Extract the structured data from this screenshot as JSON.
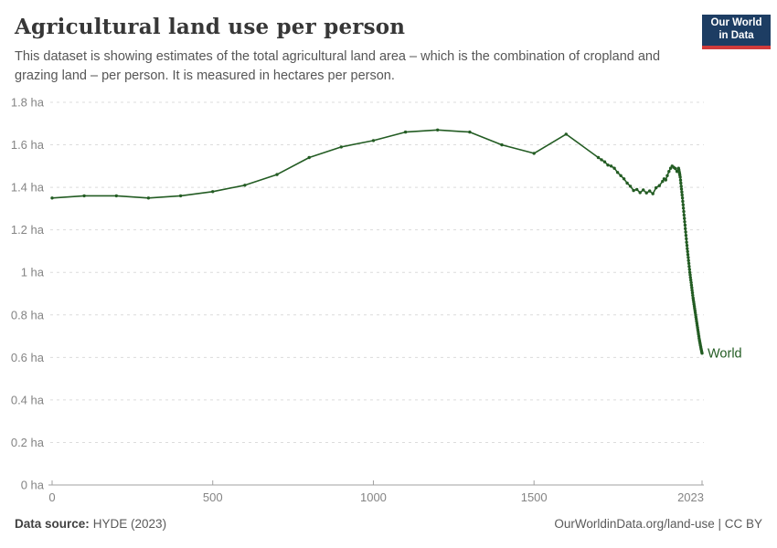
{
  "header": {
    "title": "Agricultural land use per person",
    "subtitle_lines": [
      "This dataset is showing estimates of the total agricultural land area – which is the combination of cropland and",
      "grazing land – per person. It is measured in hectares per person."
    ],
    "logo": {
      "line1": "Our World",
      "line2": "in Data",
      "bg_color": "#1d3d63",
      "stripe_color": "#d13b3b"
    }
  },
  "chart_data": {
    "type": "line",
    "title": "Agricultural land use per person",
    "unit": "hectares per person",
    "grid": "horizontal dashed",
    "legend_position": "end-of-line label",
    "x_min": 0,
    "x_max": 2023,
    "y_min": 0,
    "y_max": 1.8,
    "x_ticks": [
      {
        "v": 0,
        "label": "0"
      },
      {
        "v": 500,
        "label": "500"
      },
      {
        "v": 1000,
        "label": "1000"
      },
      {
        "v": 1500,
        "label": "1500"
      },
      {
        "v": 2023,
        "label": "2023"
      }
    ],
    "y_ticks": [
      {
        "v": 0,
        "label": "0 ha"
      },
      {
        "v": 0.2,
        "label": "0.2 ha"
      },
      {
        "v": 0.4,
        "label": "0.4 ha"
      },
      {
        "v": 0.6,
        "label": "0.6 ha"
      },
      {
        "v": 0.8,
        "label": "0.8 ha"
      },
      {
        "v": 1,
        "label": "1 ha"
      },
      {
        "v": 1.2,
        "label": "1.2 ha"
      },
      {
        "v": 1.4,
        "label": "1.4 ha"
      },
      {
        "v": 1.6,
        "label": "1.6 ha"
      },
      {
        "v": 1.8,
        "label": "1.8 ha"
      }
    ],
    "series": [
      {
        "name": "World",
        "color": "#235c23",
        "points": [
          [
            0,
            1.35
          ],
          [
            100,
            1.36
          ],
          [
            200,
            1.36
          ],
          [
            300,
            1.35
          ],
          [
            400,
            1.36
          ],
          [
            500,
            1.38
          ],
          [
            600,
            1.41
          ],
          [
            700,
            1.46
          ],
          [
            800,
            1.54
          ],
          [
            900,
            1.59
          ],
          [
            1000,
            1.62
          ],
          [
            1100,
            1.66
          ],
          [
            1200,
            1.67
          ],
          [
            1300,
            1.66
          ],
          [
            1400,
            1.6
          ],
          [
            1500,
            1.56
          ],
          [
            1600,
            1.65
          ],
          [
            1700,
            1.54
          ],
          [
            1710,
            1.53
          ],
          [
            1720,
            1.52
          ],
          [
            1730,
            1.505
          ],
          [
            1740,
            1.5
          ],
          [
            1750,
            1.49
          ],
          [
            1760,
            1.47
          ],
          [
            1770,
            1.455
          ],
          [
            1780,
            1.44
          ],
          [
            1790,
            1.42
          ],
          [
            1800,
            1.405
          ],
          [
            1810,
            1.385
          ],
          [
            1820,
            1.39
          ],
          [
            1830,
            1.375
          ],
          [
            1840,
            1.388
          ],
          [
            1850,
            1.374
          ],
          [
            1860,
            1.383
          ],
          [
            1870,
            1.37
          ],
          [
            1880,
            1.398
          ],
          [
            1890,
            1.408
          ],
          [
            1900,
            1.428
          ],
          [
            1905,
            1.44
          ],
          [
            1910,
            1.435
          ],
          [
            1915,
            1.455
          ],
          [
            1920,
            1.475
          ],
          [
            1925,
            1.49
          ],
          [
            1930,
            1.5
          ],
          [
            1935,
            1.494
          ],
          [
            1940,
            1.488
          ],
          [
            1945,
            1.475
          ],
          [
            1950,
            1.49
          ],
          [
            1951,
            1.482
          ],
          [
            1952,
            1.474
          ],
          [
            1953,
            1.466
          ],
          [
            1954,
            1.458
          ],
          [
            1955,
            1.448
          ],
          [
            1956,
            1.434
          ],
          [
            1957,
            1.42
          ],
          [
            1958,
            1.405
          ],
          [
            1959,
            1.392
          ],
          [
            1960,
            1.378
          ],
          [
            1961,
            1.364
          ],
          [
            1962,
            1.35
          ],
          [
            1963,
            1.334
          ],
          [
            1964,
            1.318
          ],
          [
            1965,
            1.302
          ],
          [
            1966,
            1.286
          ],
          [
            1967,
            1.27
          ],
          [
            1968,
            1.254
          ],
          [
            1969,
            1.238
          ],
          [
            1970,
            1.222
          ],
          [
            1971,
            1.206
          ],
          [
            1972,
            1.19
          ],
          [
            1973,
            1.174
          ],
          [
            1974,
            1.158
          ],
          [
            1975,
            1.142
          ],
          [
            1976,
            1.127
          ],
          [
            1977,
            1.112
          ],
          [
            1978,
            1.098
          ],
          [
            1979,
            1.084
          ],
          [
            1980,
            1.07
          ],
          [
            1981,
            1.056
          ],
          [
            1982,
            1.042
          ],
          [
            1983,
            1.028
          ],
          [
            1984,
            1.014
          ],
          [
            1985,
            1.0
          ],
          [
            1986,
            0.988
          ],
          [
            1987,
            0.976
          ],
          [
            1988,
            0.964
          ],
          [
            1989,
            0.952
          ],
          [
            1990,
            0.94
          ],
          [
            1991,
            0.928
          ],
          [
            1992,
            0.916
          ],
          [
            1993,
            0.904
          ],
          [
            1994,
            0.892
          ],
          [
            1995,
            0.88
          ],
          [
            1996,
            0.87
          ],
          [
            1997,
            0.86
          ],
          [
            1998,
            0.85
          ],
          [
            1999,
            0.84
          ],
          [
            2000,
            0.83
          ],
          [
            2001,
            0.82
          ],
          [
            2002,
            0.81
          ],
          [
            2003,
            0.8
          ],
          [
            2004,
            0.79
          ],
          [
            2005,
            0.78
          ],
          [
            2006,
            0.77
          ],
          [
            2007,
            0.76
          ],
          [
            2008,
            0.75
          ],
          [
            2009,
            0.74
          ],
          [
            2010,
            0.73
          ],
          [
            2011,
            0.72
          ],
          [
            2012,
            0.71
          ],
          [
            2013,
            0.7
          ],
          [
            2014,
            0.69
          ],
          [
            2015,
            0.681
          ],
          [
            2016,
            0.673
          ],
          [
            2017,
            0.665
          ],
          [
            2018,
            0.657
          ],
          [
            2019,
            0.649
          ],
          [
            2020,
            0.641
          ],
          [
            2021,
            0.634
          ],
          [
            2022,
            0.627
          ],
          [
            2023,
            0.62
          ]
        ]
      }
    ]
  },
  "footer": {
    "source_label": "Data source:",
    "source_value": "HYDE (2023)",
    "link_text": "OurWorldinData.org/land-use | CC BY"
  }
}
